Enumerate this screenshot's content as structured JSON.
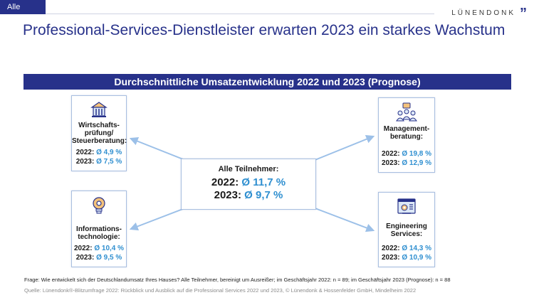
{
  "tag": "Alle",
  "brand": "LÜNENDONK",
  "title": "Professional-Services-Dienstleister erwarten 2023 ein starkes Wachstum",
  "banner": "Durchschnittliche Umsatzentwicklung 2022 und 2023 (Prognose)",
  "center": {
    "heading": "Alle Teilnehmer:",
    "y2022": "2022:",
    "v2022": "Ø 11,7 %",
    "y2023": "2023:",
    "v2023": "Ø 9,7 %"
  },
  "segments": {
    "wp": {
      "label": "Wirtschafts-\nprüfung/\nSteuerberatung:",
      "y2022": "2022:",
      "v2022": "Ø 4,9 %",
      "y2023": "2023:",
      "v2023": "Ø 7,5 %"
    },
    "mb": {
      "label": "Management-\nberatung:",
      "y2022": "2022:",
      "v2022": "Ø 19,8 %",
      "y2023": "2023:",
      "v2023": "Ø 12,9 %"
    },
    "it": {
      "label": "Informations-\ntechnologie:",
      "y2022": "2022:",
      "v2022": "Ø 10,4 %",
      "y2023": "2023:",
      "v2023": "Ø 9,5 %"
    },
    "es": {
      "label": "Engineering\nServices:",
      "y2022": "2022:",
      "v2022": "Ø 14,3 %",
      "y2023": "2023:",
      "v2023": "Ø 10,9 %"
    }
  },
  "icons": {
    "wp": "building-icon",
    "mb": "team-meeting-icon",
    "it": "lightbulb-gear-icon",
    "es": "engineering-screen-icon"
  },
  "footnote": "Frage: Wie entwickelt sich der Deutschlandumsatz Ihres Hauses? Alle Teilnehmer, bereinigt um Ausreißer; im Geschäftsjahr 2022: n = 89; im Geschäftsjahr 2023 (Prognose): n = 88",
  "source": "Quelle: Lünendonk®-Blitzumfrage 2022: Rückblick und Ausblick auf die Professional Services 2022 und 2023, © Lünendonk & Hossenfelder GmbH, Mindelheim 2022",
  "colors": {
    "brand_blue": "#27318a",
    "value_blue": "#2f8fd0",
    "arrow": "#9cc0e8"
  }
}
